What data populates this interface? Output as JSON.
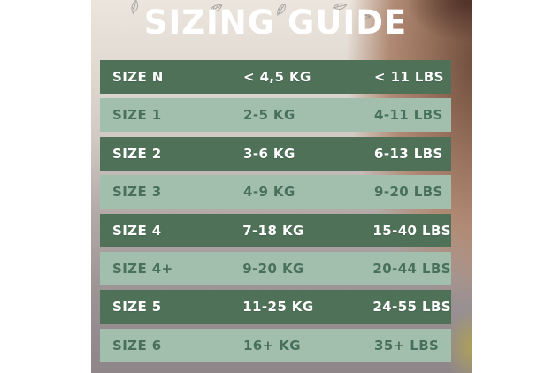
{
  "title": "SIZING GUIDE",
  "colors": {
    "dark_row_bg": "#4e7158",
    "light_row_bg": "#a2bfae",
    "dark_row_text": "#ffffff",
    "light_row_text": "#48705a",
    "title_text": "#ffffff",
    "canvas_bg": "#ffffff"
  },
  "chart_data": {
    "type": "table",
    "title": "SIZING GUIDE",
    "columns": [
      "size",
      "weight_kg",
      "weight_lbs"
    ],
    "rows": [
      {
        "size": "SIZE N",
        "kg": "< 4,5 KG",
        "lbs": "< 11 LBS"
      },
      {
        "size": "SIZE 1",
        "kg": "2-5 KG",
        "lbs": "4-11 LBS"
      },
      {
        "size": "SIZE 2",
        "kg": "3-6 KG",
        "lbs": "6-13 LBS"
      },
      {
        "size": "SIZE 3",
        "kg": "4-9 KG",
        "lbs": "9-20 LBS"
      },
      {
        "size": "SIZE 4",
        "kg": "7-18 KG",
        "lbs": "15-40 LBS"
      },
      {
        "size": "SIZE 4+",
        "kg": "9-20 KG",
        "lbs": "20-44 LBS"
      },
      {
        "size": "SIZE 5",
        "kg": "11-25 KG",
        "lbs": "24-55 LBS"
      },
      {
        "size": "SIZE 6",
        "kg": "16+ KG",
        "lbs": "35+ LBS"
      }
    ],
    "layout": {
      "row_style_alternation": [
        "dark",
        "light"
      ],
      "grid": false,
      "header_row": false
    }
  }
}
